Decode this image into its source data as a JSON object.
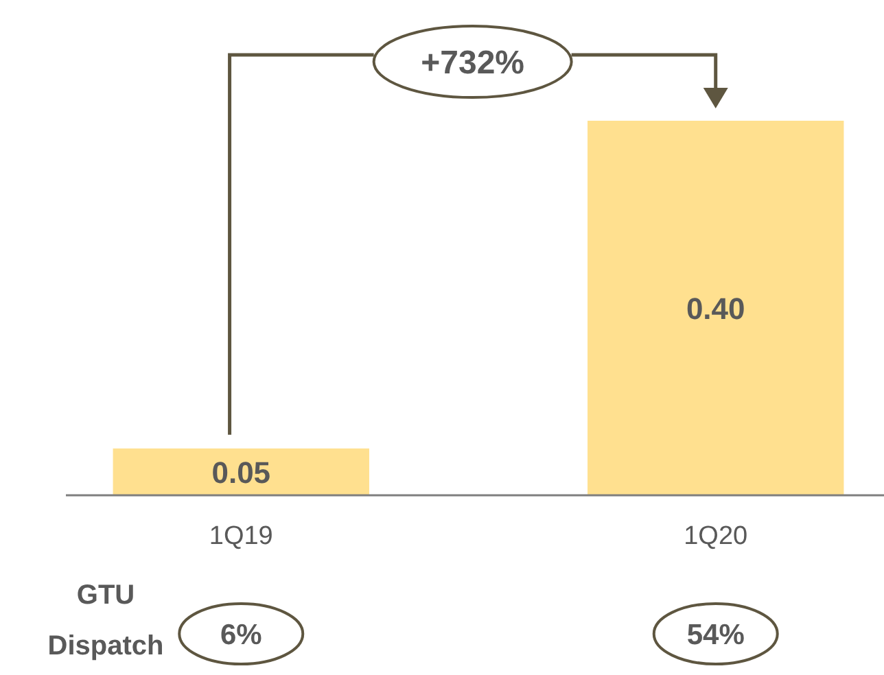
{
  "chart_data": {
    "type": "bar",
    "categories": [
      "1Q19",
      "1Q20"
    ],
    "values": [
      0.05,
      0.4
    ],
    "color": "#ffe08f",
    "value_labels": [
      "0.05",
      "0.40"
    ],
    "annotations": [
      "+732%",
      "GTU Dispatch",
      "6%",
      "54%"
    ]
  }
}
